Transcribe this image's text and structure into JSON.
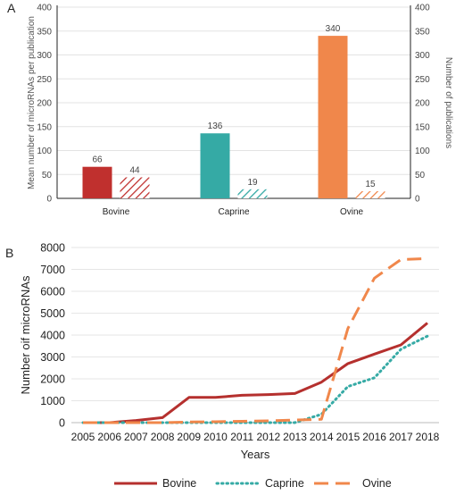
{
  "panels": {
    "a": "A",
    "b": "B"
  },
  "chart_data": [
    {
      "type": "bar",
      "categories": [
        "Bovine",
        "Caprine",
        "Ovine"
      ],
      "series": [
        {
          "values": [
            66,
            136,
            340
          ],
          "pattern": "solid"
        },
        {
          "values": [
            44,
            19,
            15
          ],
          "pattern": "hatched"
        }
      ],
      "colors": [
        "#c0302e",
        "#35aaa5",
        "#f0874b"
      ],
      "ylabel": "Mean number of microRNAs per publication",
      "y2label": "Number of publications",
      "ylim": [
        0,
        400
      ],
      "y2lim": [
        0,
        400
      ],
      "yticks": [
        0,
        50,
        100,
        150,
        200,
        250,
        300,
        350,
        400
      ],
      "y2ticks": [
        0,
        50,
        100,
        150,
        200,
        250,
        300,
        350,
        400
      ],
      "grid": true
    },
    {
      "type": "line",
      "x": [
        2005,
        2006,
        2007,
        2008,
        2009,
        2010,
        2011,
        2012,
        2013,
        2014,
        2015,
        2016,
        2017,
        2018
      ],
      "series": [
        {
          "name": "Bovine",
          "color": "#b5302e",
          "style": "solid",
          "values": [
            0,
            0,
            100,
            230,
            1150,
            1150,
            1250,
            1280,
            1330,
            1850,
            2700,
            3130,
            3550,
            4550
          ]
        },
        {
          "name": "Caprine",
          "color": "#35aaa5",
          "style": "dotted",
          "values": [
            0,
            0,
            0,
            0,
            0,
            0,
            0,
            0,
            0,
            380,
            1650,
            2050,
            3350,
            3950
          ]
        },
        {
          "name": "Ovine",
          "color": "#f0874b",
          "style": "dashed",
          "values": [
            0,
            0,
            0,
            0,
            30,
            40,
            60,
            80,
            120,
            150,
            4300,
            6600,
            7450,
            7500
          ]
        }
      ],
      "xlabel": "Years",
      "ylabel": "Number oif microRNAs",
      "ylim": [
        0,
        8000
      ],
      "yticks": [
        0,
        1000,
        2000,
        3000,
        4000,
        5000,
        6000,
        7000,
        8000
      ],
      "grid": true,
      "legend_position": "bottom"
    }
  ]
}
